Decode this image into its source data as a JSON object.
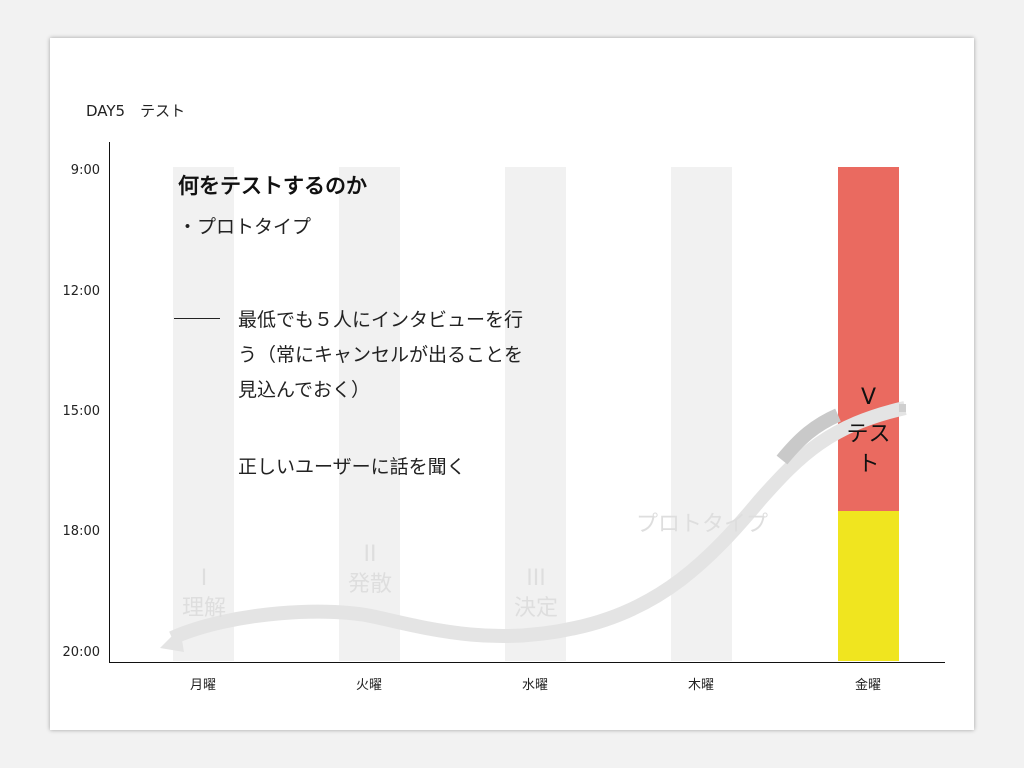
{
  "slide": {
    "title": "DAY5　テスト"
  },
  "chart_data": {
    "type": "diagram",
    "y_ticks": [
      "9:00",
      "12:00",
      "15:00",
      "18:00",
      "20:00"
    ],
    "categories": [
      "月曜",
      "火曜",
      "水曜",
      "木曜",
      "金曜"
    ],
    "phases": [
      {
        "num": "I",
        "label": "理解"
      },
      {
        "num": "II",
        "label": "発散"
      },
      {
        "num": "III",
        "label": "決定"
      },
      {
        "num": "",
        "label": "プロトタイプ"
      },
      {
        "num": "V",
        "label": "テスト"
      }
    ],
    "friday_blocks": [
      {
        "from": "9:00",
        "to": "17:30",
        "color": "#ea6a60"
      },
      {
        "from": "17:30",
        "to": "20:00",
        "color": "#f0e51f"
      }
    ]
  },
  "content": {
    "heading": "何をテストするのか",
    "sub": "・プロトタイプ",
    "note_lines": [
      "最低でも５人にインタビューを行",
      "う（常にキャンセルが出ることを",
      "見込んでおく）"
    ],
    "note2": "正しいユーザーに話を聞く"
  },
  "colors": {
    "friday_top": "#ea6a60",
    "friday_bottom": "#f0e51f",
    "column_bg": "#f1f1f1",
    "flow_arrow": "#e4e4e4"
  }
}
